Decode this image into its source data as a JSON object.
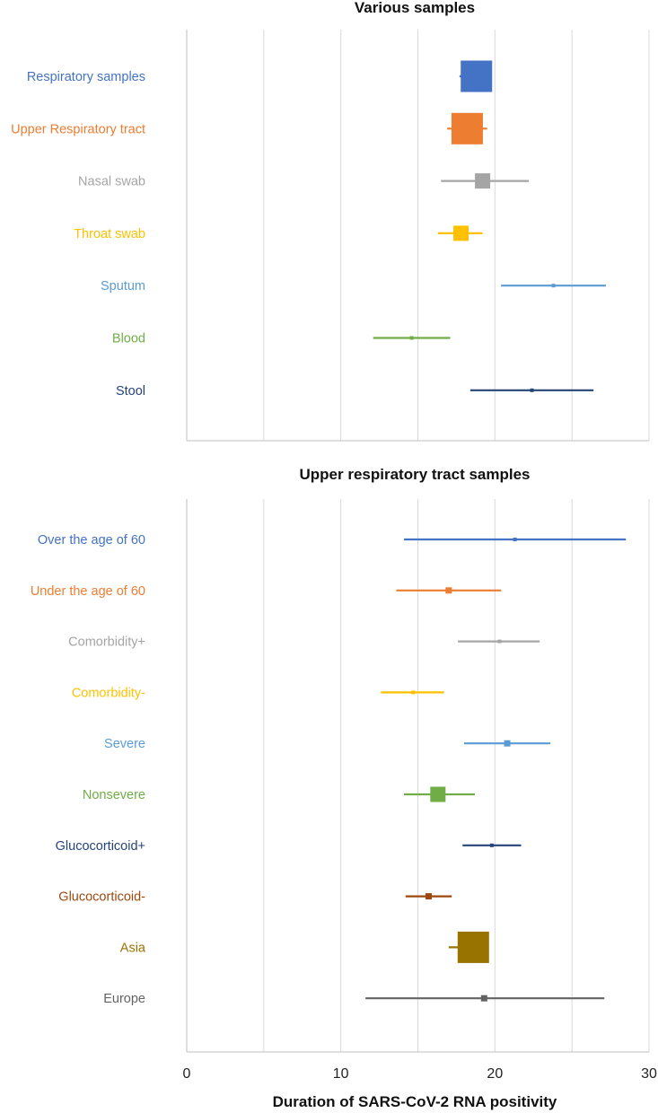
{
  "chart_data": [
    {
      "type": "forest",
      "title": "Various samples",
      "xlabel": "",
      "xlim": [
        0,
        30
      ],
      "grid": true,
      "rows": [
        {
          "label": "Respiratory samples",
          "estimate": 18.8,
          "ci": [
            17.7,
            19.8
          ],
          "weight": "large",
          "color": "#4472C4"
        },
        {
          "label": "Upper Respiratory tract",
          "estimate": 18.2,
          "ci": [
            16.9,
            19.5
          ],
          "weight": "large",
          "color": "#ED7D31"
        },
        {
          "label": "Nasal swab",
          "estimate": 19.2,
          "ci": [
            16.5,
            22.2
          ],
          "weight": "medium",
          "color": "#A5A5A5"
        },
        {
          "label": "Throat swab",
          "estimate": 17.8,
          "ci": [
            16.3,
            19.2
          ],
          "weight": "medium",
          "color": "#FFC000"
        },
        {
          "label": "Sputum",
          "estimate": 23.8,
          "ci": [
            20.4,
            27.2
          ],
          "weight": "tiny",
          "color": "#5B9BD5"
        },
        {
          "label": "Blood",
          "estimate": 14.6,
          "ci": [
            12.1,
            17.1
          ],
          "weight": "tiny",
          "color": "#70AD47"
        },
        {
          "label": "Stool",
          "estimate": 22.4,
          "ci": [
            18.4,
            26.4
          ],
          "weight": "tiny",
          "color": "#264478"
        }
      ]
    },
    {
      "type": "forest",
      "title": "Upper respiratory tract samples",
      "xlabel": "Duration of SARS-CoV-2 RNA positivity",
      "xlim": [
        0,
        30
      ],
      "xticks": [
        "0",
        "10",
        "20",
        "30"
      ],
      "grid": true,
      "rows": [
        {
          "label": "Over the age of 60",
          "estimate": 21.3,
          "ci": [
            14.1,
            28.5
          ],
          "weight": "tiny",
          "color": "#4472C4"
        },
        {
          "label": "Under the age of 60",
          "estimate": 17.0,
          "ci": [
            13.6,
            20.4
          ],
          "weight": "small",
          "color": "#ED7D31"
        },
        {
          "label": "Comorbidity+",
          "estimate": 20.3,
          "ci": [
            17.6,
            22.9
          ],
          "weight": "tiny",
          "color": "#A5A5A5"
        },
        {
          "label": "Comorbidity-",
          "estimate": 14.7,
          "ci": [
            12.6,
            16.7
          ],
          "weight": "tiny",
          "color": "#FFC000"
        },
        {
          "label": "Severe",
          "estimate": 20.8,
          "ci": [
            18.0,
            23.6
          ],
          "weight": "small",
          "color": "#5B9BD5"
        },
        {
          "label": "Nonsevere",
          "estimate": 16.3,
          "ci": [
            14.1,
            18.7
          ],
          "weight": "medium",
          "color": "#70AD47"
        },
        {
          "label": "Glucocorticoid+",
          "estimate": 19.8,
          "ci": [
            17.9,
            21.7
          ],
          "weight": "tiny",
          "color": "#264478"
        },
        {
          "label": "Glucocorticoid-",
          "estimate": 15.7,
          "ci": [
            14.2,
            17.2
          ],
          "weight": "small",
          "color": "#9E480E"
        },
        {
          "label": "Asia",
          "estimate": 18.6,
          "ci": [
            17.0,
            19.3
          ],
          "weight": "large",
          "color": "#997300"
        },
        {
          "label": "Europe",
          "estimate": 19.3,
          "ci": [
            11.6,
            27.1
          ],
          "weight": "small",
          "color": "#636363"
        }
      ]
    }
  ]
}
